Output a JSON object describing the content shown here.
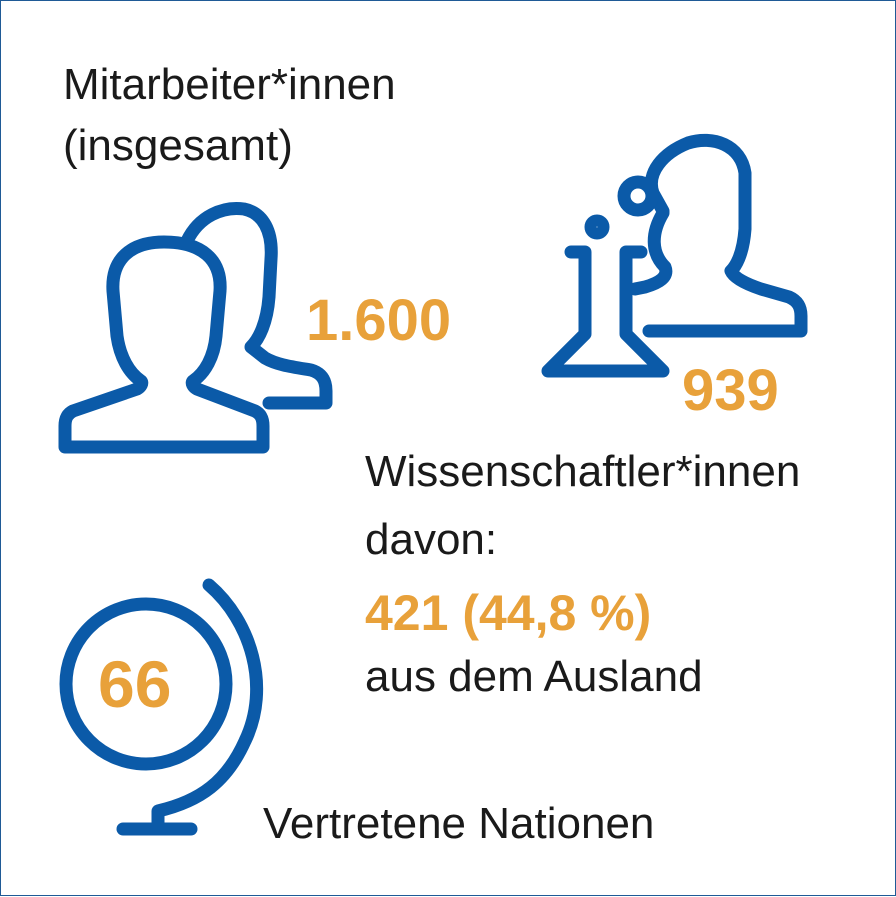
{
  "colors": {
    "blue": "#0b5aa8",
    "orange": "#e8a13a",
    "text": "#1a1a1a"
  },
  "staff": {
    "label_line1": "Mitarbeiter*innen",
    "label_line2": "(insgesamt)",
    "value": "1.600",
    "icon": "two-persons-icon"
  },
  "scientists": {
    "value": "939",
    "icon": "scientist-flask-icon",
    "label": "Wissenschaftler*innen",
    "of_which": "davon:",
    "foreign_value": "421 (44,8 %)",
    "foreign_label": "aus dem Ausland"
  },
  "nations": {
    "value": "66",
    "label": "Vertretene Nationen",
    "icon": "globe-icon"
  }
}
